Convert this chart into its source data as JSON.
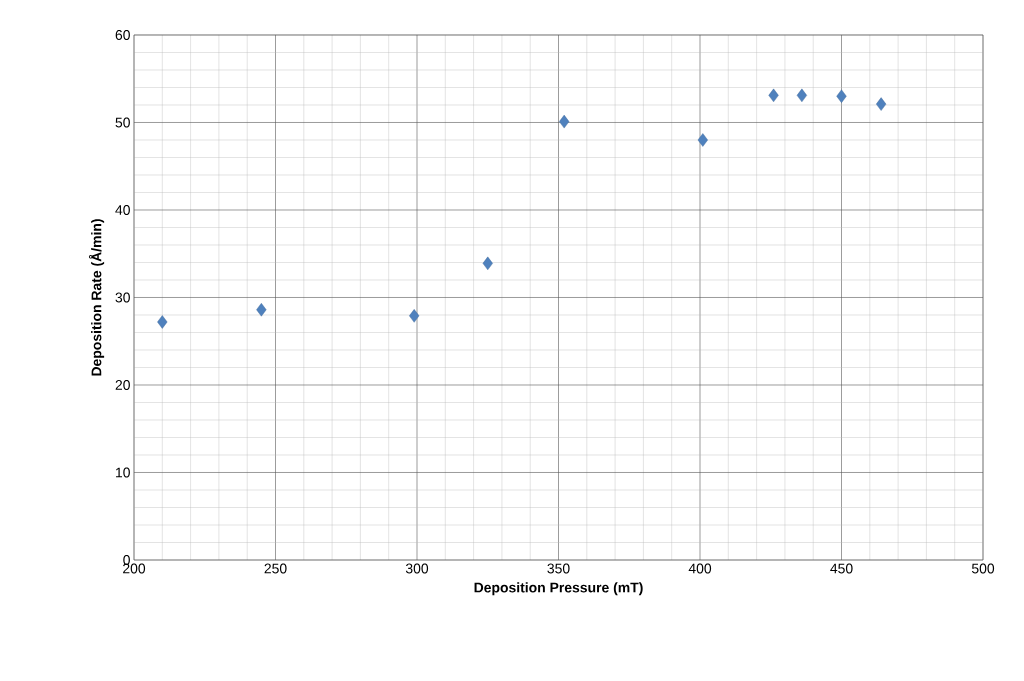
{
  "chart_data": {
    "type": "scatter",
    "xlabel": "Deposition Pressure (mT)",
    "ylabel": "Deposition Rate (Å/min)",
    "x": [
      210,
      245,
      299,
      325,
      352,
      401,
      426,
      436,
      450,
      464
    ],
    "values": [
      27.2,
      28.6,
      27.9,
      33.9,
      50.1,
      48.0,
      53.1,
      53.1,
      53.0,
      52.1
    ],
    "color": "#4f81bd",
    "marker": "diamond",
    "grid": true,
    "xlim": [
      200,
      500
    ],
    "xticks": [
      200,
      250,
      300,
      350,
      400,
      450,
      500
    ],
    "ylim": [
      0,
      60
    ],
    "yticks": [
      0,
      10,
      20,
      30,
      40,
      50,
      60
    ]
  }
}
